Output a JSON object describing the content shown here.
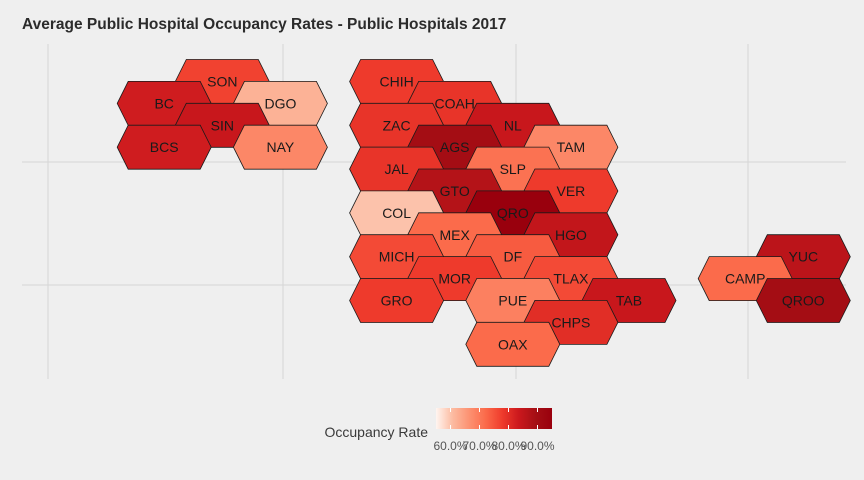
{
  "chart_data": {
    "type": "heatmap",
    "subtype": "hex-tile-map",
    "title": "Average Public Hospital Occupancy Rates - Public Hospitals 2017",
    "legend": {
      "title": "Occupancy Rate",
      "position": "bottom",
      "min": 0.55,
      "max": 0.95,
      "ticks": [
        0.6,
        0.7,
        0.8,
        0.9
      ],
      "tick_labels": [
        "60.0%",
        "70.0%",
        "80.0%",
        "90.0%"
      ]
    },
    "color_scale": {
      "stops": [
        "#fff5f0",
        "#fcbba1",
        "#fc9272",
        "#fb6a4a",
        "#ef3b2c",
        "#cb181d",
        "#a50f15",
        "#99000d"
      ]
    },
    "grid": true,
    "states": [
      {
        "code": "SON",
        "col": 3,
        "row": 0,
        "value": 0.77
      },
      {
        "code": "CHIH",
        "col": 6,
        "row": 0,
        "value": 0.78
      },
      {
        "code": "BC",
        "col": 2,
        "row": 1,
        "value": 0.83
      },
      {
        "code": "DGO",
        "col": 4,
        "row": 1,
        "value": 0.62
      },
      {
        "code": "COAH",
        "col": 7,
        "row": 1,
        "value": 0.79
      },
      {
        "code": "SIN",
        "col": 3,
        "row": 2,
        "value": 0.84
      },
      {
        "code": "ZAC",
        "col": 6,
        "row": 2,
        "value": 0.79
      },
      {
        "code": "NL",
        "col": 8,
        "row": 2,
        "value": 0.84
      },
      {
        "code": "BCS",
        "col": 2,
        "row": 3,
        "value": 0.83
      },
      {
        "code": "NAY",
        "col": 4,
        "row": 3,
        "value": 0.68
      },
      {
        "code": "AGS",
        "col": 7,
        "row": 3,
        "value": 0.9
      },
      {
        "code": "TAM",
        "col": 9,
        "row": 3,
        "value": 0.68
      },
      {
        "code": "JAL",
        "col": 6,
        "row": 4,
        "value": 0.79
      },
      {
        "code": "SLP",
        "col": 8,
        "row": 4,
        "value": 0.71
      },
      {
        "code": "GTO",
        "col": 7,
        "row": 5,
        "value": 0.87
      },
      {
        "code": "VER",
        "col": 9,
        "row": 5,
        "value": 0.78
      },
      {
        "code": "COL",
        "col": 6,
        "row": 6,
        "value": 0.6
      },
      {
        "code": "QRO",
        "col": 8,
        "row": 6,
        "value": 0.95
      },
      {
        "code": "MEX",
        "col": 7,
        "row": 7,
        "value": 0.72
      },
      {
        "code": "HGO",
        "col": 9,
        "row": 7,
        "value": 0.85
      },
      {
        "code": "MICH",
        "col": 6,
        "row": 8,
        "value": 0.76
      },
      {
        "code": "DF",
        "col": 8,
        "row": 8,
        "value": 0.74
      },
      {
        "code": "YUC",
        "col": 13,
        "row": 8,
        "value": 0.86
      },
      {
        "code": "MOR",
        "col": 7,
        "row": 9,
        "value": 0.78
      },
      {
        "code": "TLAX",
        "col": 9,
        "row": 9,
        "value": 0.76
      },
      {
        "code": "CAMP",
        "col": 12,
        "row": 9,
        "value": 0.72
      },
      {
        "code": "GRO",
        "col": 6,
        "row": 10,
        "value": 0.78
      },
      {
        "code": "PUE",
        "col": 8,
        "row": 10,
        "value": 0.69
      },
      {
        "code": "TAB",
        "col": 10,
        "row": 10,
        "value": 0.84
      },
      {
        "code": "QROO",
        "col": 13,
        "row": 10,
        "value": 0.9
      },
      {
        "code": "CHPS",
        "col": 9,
        "row": 11,
        "value": 0.8
      },
      {
        "code": "OAX",
        "col": 8,
        "row": 12,
        "value": 0.72
      }
    ]
  }
}
